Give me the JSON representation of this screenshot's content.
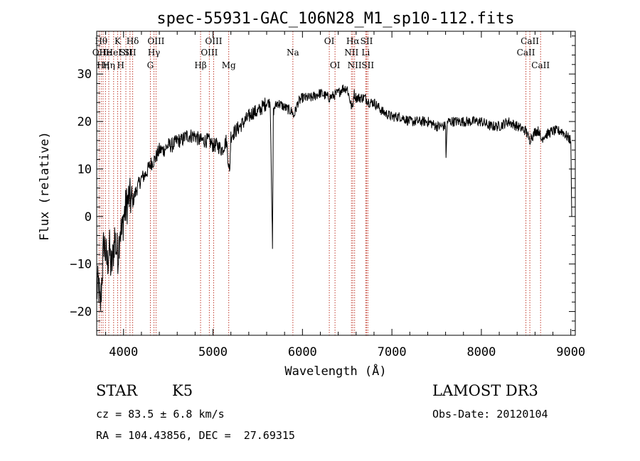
{
  "chart_data": {
    "type": "line",
    "title": "spec-55931-GAC_106N28_M1_sp10-112.fits",
    "xlabel": "Wavelength (Å)",
    "ylabel": "Flux (relative)",
    "xlim": [
      3700,
      9050
    ],
    "ylim": [
      -25,
      39
    ],
    "xticks": [
      4000,
      5000,
      6000,
      7000,
      8000,
      9000
    ],
    "yticks": [
      -20,
      -10,
      0,
      10,
      20,
      30
    ],
    "series": [
      {
        "name": "flux",
        "x": [
          3700,
          3720,
          3740,
          3760,
          3780,
          3800,
          3820,
          3840,
          3860,
          3880,
          3900,
          3920,
          3940,
          3960,
          3980,
          4000,
          4030,
          4060,
          4100,
          4150,
          4200,
          4250,
          4300,
          4350,
          4400,
          4450,
          4500,
          4550,
          4600,
          4650,
          4700,
          4750,
          4800,
          4850,
          4900,
          4950,
          5000,
          5050,
          5100,
          5150,
          5170,
          5185,
          5200,
          5250,
          5300,
          5350,
          5400,
          5450,
          5500,
          5550,
          5600,
          5640,
          5655,
          5665,
          5675,
          5690,
          5720,
          5800,
          5890,
          5900,
          5950,
          6000,
          6100,
          6200,
          6300,
          6400,
          6450,
          6500,
          6550,
          6562,
          6575,
          6600,
          6650,
          6700,
          6750,
          6800,
          6850,
          6900,
          7000,
          7100,
          7200,
          7300,
          7400,
          7500,
          7600,
          7605,
          7620,
          7700,
          7800,
          7900,
          8000,
          8100,
          8200,
          8300,
          8400,
          8500,
          8540,
          8560,
          8580,
          8600,
          8650,
          8662,
          8700,
          8800,
          8900,
          8950,
          9000,
          9010
        ],
        "values": [
          -16,
          -14,
          -20,
          -12,
          -5,
          -8,
          -10,
          -6,
          -11,
          -9,
          -4,
          -7,
          -8,
          -2,
          -4,
          0,
          2,
          4,
          3,
          6,
          8,
          9,
          11,
          12,
          14,
          14,
          15,
          15,
          16,
          16,
          17,
          17,
          17,
          16,
          16,
          16,
          15,
          15,
          14,
          16,
          12,
          9,
          17,
          18,
          19,
          20,
          21,
          22,
          22,
          23,
          24,
          24,
          6,
          -7,
          22,
          23,
          24,
          23,
          22,
          21,
          24,
          25,
          25,
          26,
          25,
          26,
          27,
          27,
          23,
          23,
          26,
          25,
          25,
          25,
          24,
          24,
          23,
          22,
          21,
          21,
          20,
          20,
          20,
          19,
          19,
          13,
          20,
          20,
          20,
          20,
          20,
          19,
          19,
          20,
          19,
          18,
          16,
          17,
          17,
          18,
          18,
          16,
          17,
          18,
          18,
          17,
          16,
          0
        ]
      }
    ],
    "lines": [
      {
        "w": 3727,
        "label": "OII",
        "row": 2
      },
      {
        "w": 3750,
        "label": "Hθ",
        "row": 1
      },
      {
        "w": 3771,
        "label": "Hη",
        "row": 3
      },
      {
        "w": 3798,
        "label": "He",
        "row": 2
      },
      {
        "w": 3835,
        "label": "Hη",
        "row": 3
      },
      {
        "w": 3889,
        "label": "HeI",
        "row": 2
      },
      {
        "w": 3934,
        "label": "K",
        "row": 1
      },
      {
        "w": 3968,
        "label": "H",
        "row": 3
      },
      {
        "w": 4026,
        "label": "SII",
        "row": 2
      },
      {
        "w": 4072,
        "label": "SII",
        "row": 2
      },
      {
        "w": 4102,
        "label": "Hδ",
        "row": 1
      },
      {
        "w": 4300,
        "label": "G",
        "row": 3
      },
      {
        "w": 4340,
        "label": "Hγ",
        "row": 2
      },
      {
        "w": 4363,
        "label": "OIII",
        "row": 1
      },
      {
        "w": 4861,
        "label": "Hβ",
        "row": 3
      },
      {
        "w": 4959,
        "label": "OIII",
        "row": 2
      },
      {
        "w": 5007,
        "label": "OIII",
        "row": 1
      },
      {
        "w": 5176,
        "label": "Mg",
        "row": 3
      },
      {
        "w": 5893,
        "label": "Na",
        "row": 2
      },
      {
        "w": 6300,
        "label": "OI",
        "row": 1
      },
      {
        "w": 6364,
        "label": "OI",
        "row": 3
      },
      {
        "w": 6548,
        "label": "NII",
        "row": 2
      },
      {
        "w": 6563,
        "label": "Hα",
        "row": 1
      },
      {
        "w": 6583,
        "label": "NII",
        "row": 3
      },
      {
        "w": 6707,
        "label": "Li",
        "row": 2
      },
      {
        "w": 6717,
        "label": "SII",
        "row": 1
      },
      {
        "w": 6731,
        "label": "SII",
        "row": 3
      },
      {
        "w": 8498,
        "label": "CaII",
        "row": 2
      },
      {
        "w": 8542,
        "label": "CaII",
        "row": 1
      },
      {
        "w": 8662,
        "label": "CaII",
        "row": 3
      }
    ]
  },
  "info": {
    "object_class": "STAR",
    "subclass": "K5",
    "survey": "LAMOST DR3",
    "redshift": "cz = 83.5 ± 6.8 km/s",
    "obs_date": "Obs-Date: 20120104",
    "coords": "RA = 104.43856, DEC =  27.69315"
  }
}
